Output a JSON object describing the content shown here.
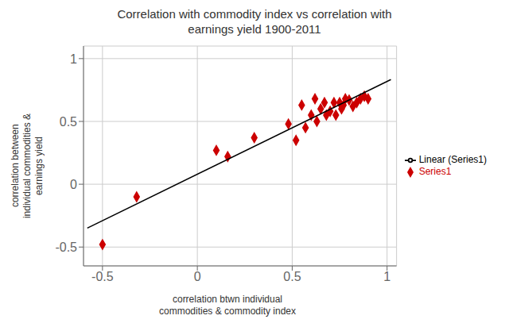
{
  "chart_data": {
    "type": "scatter",
    "title": "Correlation with commodity index vs correlation with\nearnings yield 1900-2011",
    "xlabel": "correlation btwn individual\ncommodities & commodity index",
    "ylabel": "correlation between\nindividual commodities &\nearnings yield",
    "xlim": [
      -0.6,
      1.05
    ],
    "ylim": [
      -0.65,
      1.1
    ],
    "xticks": [
      -0.5,
      0,
      0.5,
      1
    ],
    "yticks": [
      -0.5,
      0,
      0.5,
      1
    ],
    "grid": true,
    "legend": "right",
    "series": [
      {
        "name": "Series1",
        "type": "scatter",
        "marker": "diamond",
        "color": "#cc0000",
        "x": [
          -0.5,
          -0.32,
          0.1,
          0.16,
          0.3,
          0.48,
          0.52,
          0.55,
          0.57,
          0.6,
          0.62,
          0.63,
          0.65,
          0.67,
          0.68,
          0.7,
          0.72,
          0.73,
          0.75,
          0.76,
          0.77,
          0.78,
          0.8,
          0.82,
          0.84,
          0.86,
          0.88,
          0.9
        ],
        "values": [
          -0.48,
          -0.1,
          0.27,
          0.22,
          0.37,
          0.48,
          0.35,
          0.63,
          0.45,
          0.55,
          0.68,
          0.5,
          0.6,
          0.65,
          0.55,
          0.58,
          0.65,
          0.55,
          0.65,
          0.6,
          0.63,
          0.68,
          0.67,
          0.62,
          0.65,
          0.68,
          0.7,
          0.68
        ]
      },
      {
        "name": "Linear (Series1)",
        "type": "line",
        "color": "#000000",
        "x": [
          -0.58,
          1.02
        ],
        "values": [
          -0.3491,
          0.8328
        ]
      }
    ]
  }
}
